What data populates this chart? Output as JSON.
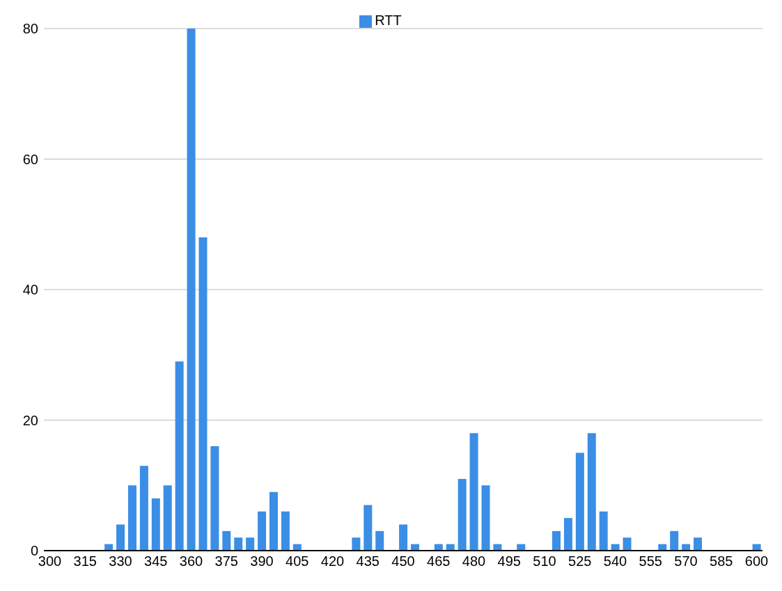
{
  "chart_data": {
    "type": "bar",
    "categories": [
      "300",
      null,
      null,
      "315",
      null,
      null,
      "330",
      null,
      null,
      "345",
      null,
      null,
      "360",
      null,
      null,
      "375",
      null,
      null,
      "390",
      null,
      null,
      "405",
      null,
      null,
      "420",
      null,
      null,
      "435",
      null,
      null,
      "450",
      null,
      null,
      "465",
      null,
      null,
      "480",
      null,
      null,
      "495",
      null,
      null,
      "510",
      null,
      null,
      "525",
      null,
      null,
      "540",
      null,
      null,
      "555",
      null,
      null,
      "570",
      null,
      null,
      "585",
      null,
      null,
      "600"
    ],
    "series": [
      {
        "name": "RTT",
        "color": "#3a8ee6",
        "values": [
          0,
          0,
          0,
          0,
          0,
          1,
          4,
          10,
          13,
          8,
          10,
          29,
          80,
          48,
          16,
          3,
          2,
          2,
          6,
          9,
          6,
          1,
          0,
          0,
          0,
          0,
          2,
          7,
          3,
          0,
          4,
          1,
          0,
          1,
          1,
          11,
          18,
          10,
          1,
          0,
          1,
          0,
          0,
          3,
          5,
          15,
          18,
          6,
          1,
          2,
          0,
          0,
          1,
          3,
          1,
          2,
          0,
          0,
          0,
          0,
          1
        ]
      }
    ],
    "ylim": [
      0,
      80
    ],
    "yticks": [
      0,
      20,
      40,
      60,
      80
    ],
    "grid": "y",
    "legend": "top"
  }
}
